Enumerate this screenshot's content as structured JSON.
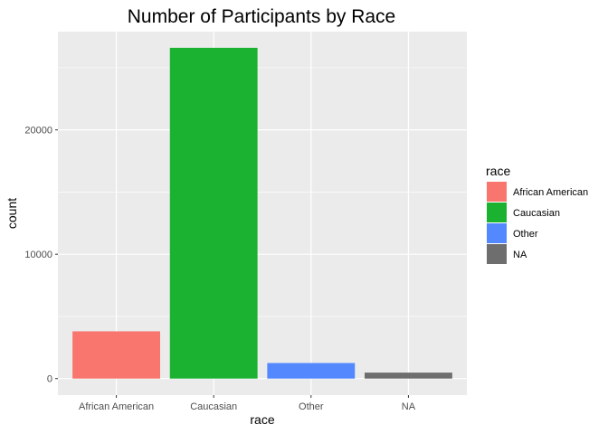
{
  "chart_data": {
    "type": "bar",
    "title": "Number of Participants by Race",
    "xlabel": "race",
    "ylabel": "count",
    "categories": [
      "African American",
      "Caucasian",
      "Other",
      "NA"
    ],
    "values": [
      3800,
      26600,
      1250,
      480
    ],
    "colors": [
      "#F8766D",
      "#1BB232",
      "#5388FF",
      "#6E6E6E"
    ],
    "ylim": [
      -1330,
      27900
    ],
    "yticks": [
      0,
      10000,
      20000
    ],
    "grid": true,
    "legend": {
      "title": "race",
      "placement": "right",
      "entries": [
        "African American",
        "Caucasian",
        "Other",
        "NA"
      ]
    }
  }
}
